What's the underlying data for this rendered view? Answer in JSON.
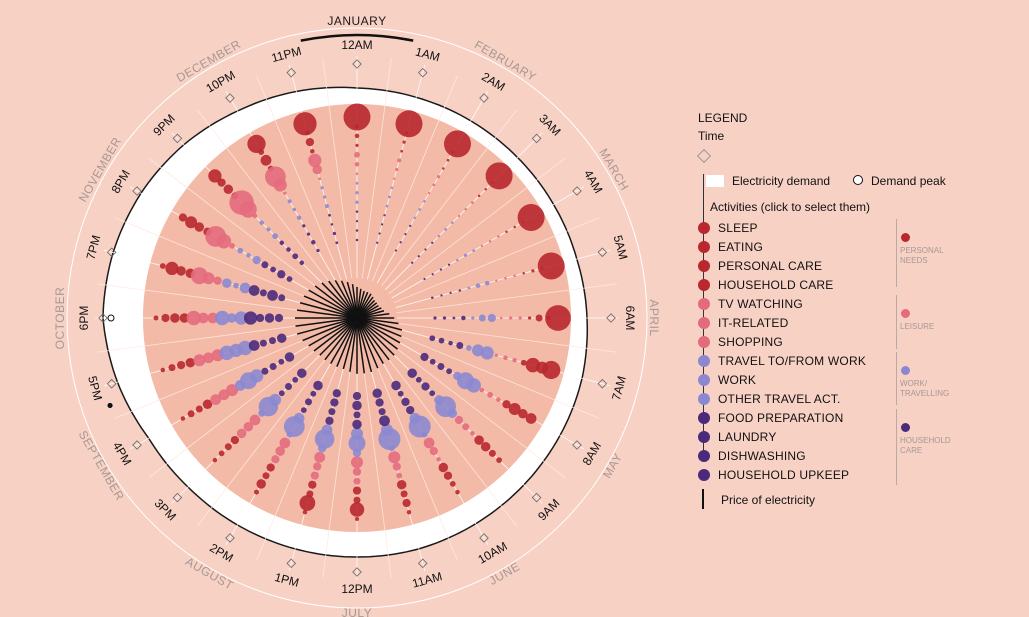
{
  "chart_data": {
    "type": "radial-bubble",
    "selected_month": "JANUARY",
    "months": [
      "JANUARY",
      "FEBRUARY",
      "MARCH",
      "APRIL",
      "MAY",
      "JUNE",
      "JULY",
      "AUGUST",
      "SEPTEMBER",
      "OCTOBER",
      "NOVEMBER",
      "DECEMBER"
    ],
    "hours": [
      "12AM",
      "1AM",
      "2AM",
      "3AM",
      "4AM",
      "5AM",
      "6AM",
      "7AM",
      "8AM",
      "9AM",
      "10AM",
      "11AM",
      "12PM",
      "1PM",
      "2PM",
      "3PM",
      "4PM",
      "5PM",
      "6PM",
      "7PM",
      "8PM",
      "9PM",
      "10PM",
      "11PM"
    ],
    "demand_peak_hour": 18,
    "activities": [
      {
        "name": "SLEEP",
        "group": "personal",
        "color": "#b8282e",
        "values": [
          1.0,
          1.0,
          1.0,
          1.0,
          1.0,
          1.0,
          0.95,
          0.65,
          0.35,
          0.15,
          0.1,
          0.1,
          0.08,
          0.1,
          0.12,
          0.1,
          0.1,
          0.1,
          0.12,
          0.15,
          0.25,
          0.45,
          0.65,
          0.85
        ]
      },
      {
        "name": "EATING",
        "group": "personal",
        "color": "#b8282e",
        "values": [
          0.08,
          0.05,
          0.03,
          0.02,
          0.02,
          0.03,
          0.1,
          0.4,
          0.3,
          0.2,
          0.15,
          0.25,
          0.5,
          0.55,
          0.3,
          0.15,
          0.2,
          0.2,
          0.25,
          0.45,
          0.4,
          0.25,
          0.15,
          0.1
        ]
      },
      {
        "name": "PERSONAL CARE",
        "group": "personal",
        "color": "#b8282e",
        "values": [
          0.1,
          0.05,
          0.03,
          0.02,
          0.02,
          0.05,
          0.2,
          0.5,
          0.4,
          0.3,
          0.25,
          0.2,
          0.2,
          0.2,
          0.2,
          0.2,
          0.2,
          0.25,
          0.3,
          0.3,
          0.3,
          0.3,
          0.35,
          0.25
        ]
      },
      {
        "name": "HOUSEHOLD CARE",
        "group": "personal",
        "color": "#b8282e",
        "values": [
          0.05,
          0.03,
          0.02,
          0.02,
          0.02,
          0.02,
          0.05,
          0.15,
          0.25,
          0.3,
          0.3,
          0.3,
          0.25,
          0.25,
          0.25,
          0.25,
          0.3,
          0.3,
          0.3,
          0.3,
          0.25,
          0.2,
          0.15,
          0.1
        ]
      },
      {
        "name": "TV WATCHING",
        "group": "leisure",
        "color": "#e46b7c",
        "values": [
          0.15,
          0.08,
          0.05,
          0.03,
          0.02,
          0.02,
          0.05,
          0.1,
          0.1,
          0.1,
          0.1,
          0.15,
          0.2,
          0.25,
          0.25,
          0.3,
          0.35,
          0.4,
          0.5,
          0.6,
          0.75,
          0.9,
          0.75,
          0.45
        ]
      },
      {
        "name": "IT-RELATED",
        "group": "leisure",
        "color": "#e46b7c",
        "values": [
          0.1,
          0.05,
          0.03,
          0.02,
          0.02,
          0.02,
          0.05,
          0.1,
          0.15,
          0.2,
          0.25,
          0.25,
          0.25,
          0.25,
          0.3,
          0.3,
          0.35,
          0.35,
          0.35,
          0.4,
          0.5,
          0.6,
          0.45,
          0.3
        ]
      },
      {
        "name": "SHOPPING",
        "group": "leisure",
        "color": "#e46b7c",
        "values": [
          0.02,
          0.01,
          0.01,
          0.01,
          0.01,
          0.01,
          0.02,
          0.05,
          0.1,
          0.25,
          0.35,
          0.4,
          0.4,
          0.35,
          0.35,
          0.35,
          0.4,
          0.4,
          0.35,
          0.25,
          0.15,
          0.1,
          0.05,
          0.03
        ]
      },
      {
        "name": "TRAVEL TO/FROM WORK",
        "group": "work",
        "color": "#8c88d0",
        "values": [
          0.03,
          0.02,
          0.02,
          0.02,
          0.03,
          0.1,
          0.25,
          0.45,
          0.5,
          0.3,
          0.15,
          0.15,
          0.25,
          0.25,
          0.15,
          0.2,
          0.35,
          0.5,
          0.5,
          0.3,
          0.15,
          0.1,
          0.08,
          0.05
        ]
      },
      {
        "name": "WORK",
        "group": "work",
        "color": "#8c88d0",
        "values": [
          0.05,
          0.03,
          0.03,
          0.03,
          0.05,
          0.1,
          0.2,
          0.4,
          0.6,
          0.75,
          0.8,
          0.8,
          0.6,
          0.7,
          0.75,
          0.7,
          0.6,
          0.45,
          0.3,
          0.15,
          0.1,
          0.08,
          0.06,
          0.05
        ]
      },
      {
        "name": "OTHER TRAVEL ACT.",
        "group": "work",
        "color": "#8c88d0",
        "values": [
          0.05,
          0.03,
          0.02,
          0.02,
          0.02,
          0.03,
          0.05,
          0.15,
          0.25,
          0.3,
          0.35,
          0.4,
          0.4,
          0.35,
          0.35,
          0.4,
          0.45,
          0.5,
          0.45,
          0.35,
          0.25,
          0.15,
          0.1,
          0.08
        ]
      },
      {
        "name": "FOOD PREPARATION",
        "group": "household",
        "color": "#4b2a7c",
        "values": [
          0.02,
          0.01,
          0.01,
          0.01,
          0.01,
          0.02,
          0.1,
          0.2,
          0.15,
          0.15,
          0.25,
          0.35,
          0.3,
          0.25,
          0.15,
          0.15,
          0.2,
          0.35,
          0.45,
          0.35,
          0.2,
          0.1,
          0.05,
          0.03
        ]
      },
      {
        "name": "LAUNDRY",
        "group": "household",
        "color": "#4b2a7c",
        "values": [
          0.01,
          0.01,
          0.01,
          0.01,
          0.01,
          0.01,
          0.03,
          0.1,
          0.2,
          0.25,
          0.25,
          0.2,
          0.2,
          0.2,
          0.2,
          0.2,
          0.2,
          0.2,
          0.25,
          0.2,
          0.15,
          0.1,
          0.05,
          0.02
        ]
      },
      {
        "name": "DISHWASHING",
        "group": "household",
        "color": "#4b2a7c",
        "values": [
          0.02,
          0.01,
          0.01,
          0.01,
          0.01,
          0.01,
          0.05,
          0.15,
          0.15,
          0.15,
          0.15,
          0.25,
          0.3,
          0.25,
          0.15,
          0.15,
          0.15,
          0.2,
          0.3,
          0.35,
          0.25,
          0.15,
          0.1,
          0.05
        ]
      },
      {
        "name": "HOUSEHOLD UPKEEP",
        "group": "household",
        "color": "#4b2a7c",
        "values": [
          0.02,
          0.01,
          0.01,
          0.01,
          0.01,
          0.02,
          0.05,
          0.15,
          0.25,
          0.3,
          0.3,
          0.3,
          0.25,
          0.25,
          0.3,
          0.3,
          0.3,
          0.3,
          0.25,
          0.2,
          0.15,
          0.1,
          0.05,
          0.03
        ]
      }
    ],
    "electricity_demand": [
      0.2,
      0.15,
      0.12,
      0.1,
      0.1,
      0.12,
      0.2,
      0.3,
      0.35,
      0.4,
      0.45,
      0.5,
      0.5,
      0.5,
      0.5,
      0.5,
      0.55,
      0.8,
      1.0,
      0.95,
      0.85,
      0.7,
      0.5,
      0.35
    ],
    "price_of_electricity": [
      0.5,
      0.45,
      0.45,
      0.4,
      0.4,
      0.45,
      0.6,
      0.75,
      0.8,
      0.85,
      0.85,
      0.9,
      0.9,
      0.85,
      0.85,
      0.85,
      0.9,
      1.0,
      1.0,
      0.95,
      0.9,
      0.8,
      0.7,
      0.6
    ]
  },
  "legend": {
    "title": "LEGEND",
    "time": "Time",
    "demand": "Electricity demand",
    "peak": "Demand peak",
    "activities_title": "Activities (click to select them)",
    "price": "Price of electricity",
    "groups": [
      {
        "label": "PERSONAL\nNEEDS",
        "color": "#b8282e"
      },
      {
        "label": "LEISURE",
        "color": "#e46b7c"
      },
      {
        "label": "WORK/\nTRAVELLING",
        "color": "#8c88d0"
      },
      {
        "label": "HOUSEHOLD\nCARE",
        "color": "#4b2a7c"
      }
    ]
  }
}
